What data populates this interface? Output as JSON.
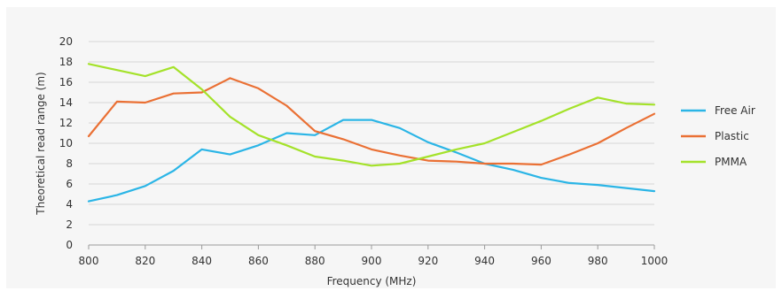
{
  "chart_data": {
    "type": "line",
    "xlabel": "Frequency (MHz)",
    "ylabel": "Theoretical read range (m)",
    "xlim": [
      800,
      1000
    ],
    "ylim": [
      0,
      20
    ],
    "x_ticks": [
      "800",
      "820",
      "840",
      "860",
      "880",
      "900",
      "920",
      "940",
      "960",
      "980",
      "1000"
    ],
    "y_ticks": [
      "0",
      "2",
      "4",
      "6",
      "8",
      "10",
      "12",
      "14",
      "16",
      "18",
      "20"
    ],
    "grid": "horizontal",
    "legend_position": "right",
    "x": [
      800,
      810,
      820,
      830,
      840,
      850,
      860,
      870,
      880,
      890,
      900,
      910,
      920,
      930,
      940,
      950,
      960,
      970,
      980,
      990,
      1000
    ],
    "series": [
      {
        "name": "Free Air",
        "color": "#2bb5e6",
        "values": [
          4.3,
          4.9,
          5.8,
          7.3,
          9.4,
          8.9,
          9.8,
          11.0,
          10.8,
          12.3,
          12.3,
          11.5,
          10.1,
          9.1,
          8.0,
          7.4,
          6.6,
          6.1,
          5.9,
          5.6,
          5.3
        ]
      },
      {
        "name": "Plastic",
        "color": "#ea7034",
        "values": [
          10.7,
          14.1,
          14.0,
          14.9,
          15.0,
          16.4,
          15.4,
          13.7,
          11.2,
          10.4,
          9.4,
          8.8,
          8.3,
          8.2,
          8.0,
          8.0,
          7.9,
          8.9,
          10.0,
          11.5,
          12.9
        ]
      },
      {
        "name": "PMMA",
        "color": "#a4e22a",
        "values": [
          17.8,
          17.2,
          16.6,
          17.5,
          15.3,
          12.6,
          10.8,
          9.8,
          8.7,
          8.3,
          7.8,
          8.0,
          8.7,
          9.4,
          10.0,
          11.1,
          12.2,
          13.4,
          14.5,
          13.9,
          13.8
        ]
      }
    ]
  }
}
